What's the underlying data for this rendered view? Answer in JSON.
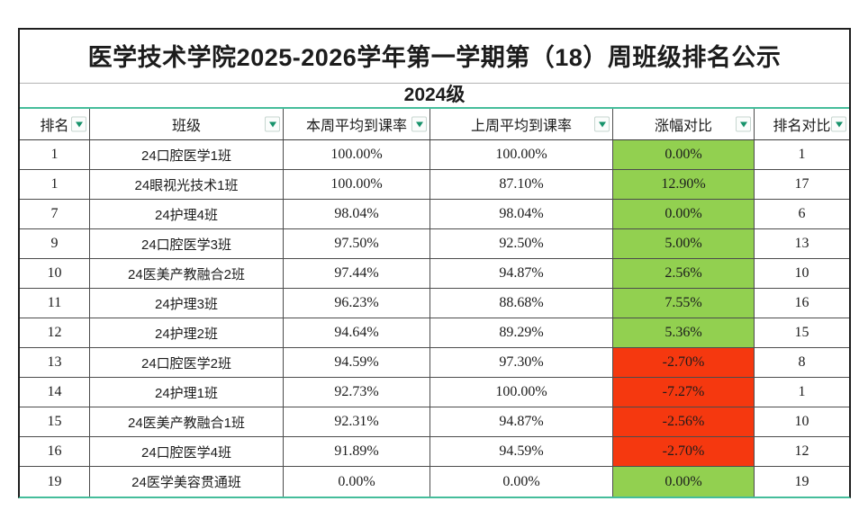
{
  "sheet": {
    "title": "医学技术学院2025-2026学年第一学期第（18）周班级排名公示",
    "subtitle": "2024级",
    "columns": [
      "排名",
      "班级",
      "本周平均到课率",
      "上周平均到课率",
      "涨幅对比",
      "排名对比"
    ],
    "rows": [
      {
        "rank": "1",
        "class_name": "24口腔医学1班",
        "this_week": "100.00%",
        "last_week": "100.00%",
        "change": "0.00%",
        "change_state": "up",
        "rank_compare": "1"
      },
      {
        "rank": "1",
        "class_name": "24眼视光技术1班",
        "this_week": "100.00%",
        "last_week": "87.10%",
        "change": "12.90%",
        "change_state": "up",
        "rank_compare": "17"
      },
      {
        "rank": "7",
        "class_name": "24护理4班",
        "this_week": "98.04%",
        "last_week": "98.04%",
        "change": "0.00%",
        "change_state": "up",
        "rank_compare": "6"
      },
      {
        "rank": "9",
        "class_name": "24口腔医学3班",
        "this_week": "97.50%",
        "last_week": "92.50%",
        "change": "5.00%",
        "change_state": "up",
        "rank_compare": "13"
      },
      {
        "rank": "10",
        "class_name": "24医美产教融合2班",
        "this_week": "97.44%",
        "last_week": "94.87%",
        "change": "2.56%",
        "change_state": "up",
        "rank_compare": "10"
      },
      {
        "rank": "11",
        "class_name": "24护理3班",
        "this_week": "96.23%",
        "last_week": "88.68%",
        "change": "7.55%",
        "change_state": "up",
        "rank_compare": "16"
      },
      {
        "rank": "12",
        "class_name": "24护理2班",
        "this_week": "94.64%",
        "last_week": "89.29%",
        "change": "5.36%",
        "change_state": "up",
        "rank_compare": "15"
      },
      {
        "rank": "13",
        "class_name": "24口腔医学2班",
        "this_week": "94.59%",
        "last_week": "97.30%",
        "change": "-2.70%",
        "change_state": "down",
        "rank_compare": "8"
      },
      {
        "rank": "14",
        "class_name": "24护理1班",
        "this_week": "92.73%",
        "last_week": "100.00%",
        "change": "-7.27%",
        "change_state": "down",
        "rank_compare": "1"
      },
      {
        "rank": "15",
        "class_name": "24医美产教融合1班",
        "this_week": "92.31%",
        "last_week": "94.87%",
        "change": "-2.56%",
        "change_state": "down",
        "rank_compare": "10"
      },
      {
        "rank": "16",
        "class_name": "24口腔医学4班",
        "this_week": "91.89%",
        "last_week": "94.59%",
        "change": "-2.70%",
        "change_state": "down",
        "rank_compare": "12"
      },
      {
        "rank": "19",
        "class_name": "24医学美容贯通班",
        "this_week": "0.00%",
        "last_week": "0.00%",
        "change": "0.00%",
        "change_state": "up",
        "rank_compare": "19"
      }
    ],
    "colors": {
      "positive_fill": "#92d050",
      "negative_fill": "#f5380f",
      "accent_teal": "#45bd9b",
      "filter_arrow": "#17936b"
    },
    "icons": {
      "header_filter": "chevron-down-icon"
    }
  }
}
